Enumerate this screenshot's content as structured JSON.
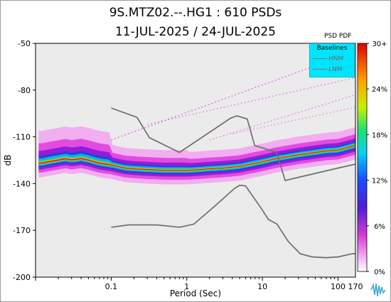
{
  "title_line1": "9S.MTZ02.--.HG1 : 610 PSDs",
  "title_line2": "11-JUL-2025 / 24-JUL-2025",
  "colorbar_title": "PSD PDF",
  "legend": {
    "title": "Baselines",
    "entries": [
      "HNM",
      "LNM"
    ]
  },
  "colors": {
    "plot_background": "#ebebeb",
    "baseline_line": "#6e6e6e",
    "legend_background": "#00e5ff"
  },
  "chart_data": {
    "type": "heatmap",
    "xlabel": "Period (Sec)",
    "ylabel": "dB",
    "x_scale": "log",
    "xlim": [
      0.01,
      170
    ],
    "ylim": [
      -200,
      -50
    ],
    "x_ticks": [
      {
        "value": 0.1,
        "label": "0.1"
      },
      {
        "value": 1,
        "label": "1"
      },
      {
        "value": 10,
        "label": "10"
      },
      {
        "value": 100,
        "label": "100"
      },
      {
        "value": 170,
        "label": "170"
      }
    ],
    "y_ticks": [
      -50,
      -80,
      -110,
      -140,
      -170,
      -200
    ],
    "colorbar": {
      "min": 0,
      "max": 30,
      "ticks": [
        "0%",
        "6%",
        "12%",
        "18%",
        "24%",
        "30+"
      ]
    },
    "series": [
      {
        "name": "HNM",
        "x": [
          0.1,
          0.22,
          0.32,
          0.8,
          3.8,
          4.6,
          6.3,
          7.9,
          15.4,
          20,
          100,
          170
        ],
        "y": [
          -91.5,
          -97.5,
          -110.5,
          -120,
          -98,
          -96.5,
          -98.5,
          -115.5,
          -120,
          -138,
          -130,
          -127.5
        ]
      },
      {
        "name": "LNM",
        "x": [
          0.1,
          0.17,
          0.4,
          0.8,
          1.24,
          2.4,
          4.3,
          5,
          6,
          10,
          12,
          15.6,
          21.9,
          31.6,
          45,
          70,
          101,
          154,
          170
        ],
        "y": [
          -168,
          -166.5,
          -166.5,
          -168,
          -166,
          -154,
          -143,
          -141,
          -141.5,
          -157,
          -163,
          -166,
          -177,
          -185,
          -187,
          -187.5,
          -187,
          -185,
          -185
        ]
      },
      {
        "name": "mode",
        "x": [
          0.012,
          0.015,
          0.02,
          0.025,
          0.03,
          0.04,
          0.05,
          0.07,
          0.1,
          0.15,
          0.2,
          0.3,
          0.5,
          0.7,
          1,
          1.5,
          2,
          3,
          5,
          7,
          10,
          15,
          20,
          30,
          50,
          70,
          100,
          170
        ],
        "y": [
          -127,
          -126,
          -125,
          -124,
          -125,
          -124,
          -125,
          -127,
          -128,
          -130,
          -130.5,
          -131,
          -131.5,
          -131.5,
          -131.5,
          -131,
          -130.5,
          -130,
          -129,
          -127.5,
          -126,
          -124,
          -123,
          -121.5,
          -120,
          -119,
          -118.5,
          -115.5
        ]
      }
    ]
  }
}
